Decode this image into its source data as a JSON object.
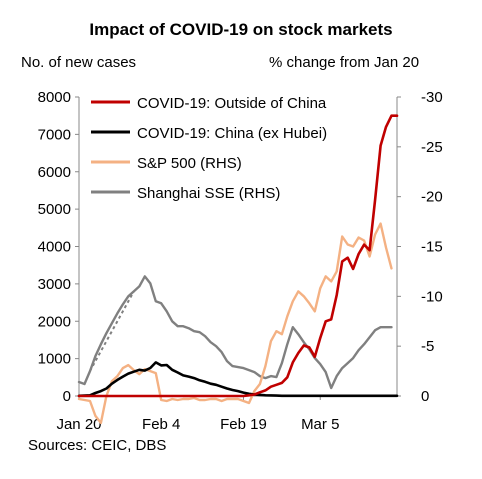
{
  "chart_data": {
    "type": "line",
    "title": "Impact of COVID-19 on stock markets",
    "ylabel_left": "No. of new cases",
    "ylabel_right": "% change from Jan 20",
    "source": "Sources: CEIC, DBS",
    "xlim": [
      0,
      58
    ],
    "ylim_left": [
      0,
      8000
    ],
    "ylim_right": [
      0,
      -30
    ],
    "right_axis_inverted": true,
    "x_ticks": [
      {
        "pos": 0,
        "label": "Jan 20"
      },
      {
        "pos": 15,
        "label": "Feb 4"
      },
      {
        "pos": 30,
        "label": "Feb 19"
      },
      {
        "pos": 44,
        "label": "Mar 5"
      }
    ],
    "y_ticks_left": [
      "0",
      "1000",
      "2000",
      "3000",
      "4000",
      "5000",
      "6000",
      "7000",
      "8000"
    ],
    "y_ticks_right": [
      "0",
      "-5",
      "-10",
      "-15",
      "-20",
      "-25",
      "-30"
    ],
    "legend_position": "top-right",
    "grid": false,
    "series": [
      {
        "name": "COVID-19: Outside of China",
        "axis": "left",
        "color": "#c00000",
        "x": [
          0,
          2,
          4,
          6,
          8,
          10,
          12,
          14,
          16,
          18,
          20,
          22,
          24,
          26,
          28,
          30,
          31,
          32,
          33,
          34,
          35,
          36,
          37,
          38,
          39,
          40,
          41,
          42,
          43,
          44,
          45,
          46,
          47,
          48,
          49,
          50,
          51,
          52,
          53,
          54,
          55,
          56,
          57,
          58
        ],
        "y": [
          0,
          0,
          0,
          0,
          0,
          0,
          0,
          0,
          0,
          0,
          0,
          0,
          0,
          0,
          0,
          0,
          20,
          40,
          100,
          150,
          250,
          300,
          350,
          500,
          900,
          1150,
          1350,
          1300,
          1050,
          1550,
          2000,
          2050,
          2700,
          3600,
          3700,
          3400,
          3800,
          4050,
          3900,
          5250,
          6700,
          7200,
          7500,
          7500
        ]
      },
      {
        "name": "COVID-19: China (ex Hubei)",
        "axis": "left",
        "color": "#000000",
        "x": [
          0,
          1,
          2,
          3,
          4,
          5,
          6,
          7,
          8,
          9,
          10,
          11,
          12,
          13,
          14,
          15,
          16,
          17,
          18,
          19,
          20,
          21,
          22,
          23,
          24,
          25,
          26,
          27,
          28,
          29,
          30,
          31,
          32,
          33,
          34,
          35,
          36,
          37,
          38,
          39,
          40,
          41,
          42,
          43,
          44,
          45,
          46,
          47,
          48,
          49,
          50,
          51,
          52,
          53,
          54,
          55,
          56,
          57,
          58
        ],
        "y": [
          5,
          10,
          20,
          80,
          130,
          200,
          330,
          430,
          520,
          600,
          650,
          700,
          680,
          750,
          900,
          820,
          830,
          700,
          630,
          550,
          520,
          480,
          420,
          380,
          330,
          300,
          250,
          200,
          160,
          130,
          90,
          60,
          40,
          30,
          20,
          15,
          10,
          5,
          5,
          5,
          5,
          5,
          5,
          5,
          5,
          5,
          5,
          5,
          5,
          5,
          5,
          5,
          5,
          5,
          5,
          5,
          5,
          5,
          5
        ]
      },
      {
        "name": "S&P 500 (RHS)",
        "axis": "right",
        "color": "#f4b183",
        "x": [
          0,
          2,
          3,
          4,
          5,
          6,
          7,
          8,
          9,
          10,
          11,
          12,
          13,
          14,
          15,
          16,
          17,
          18,
          19,
          20,
          21,
          22,
          23,
          24,
          25,
          26,
          27,
          28,
          29,
          30,
          31,
          32,
          33,
          34,
          35,
          36,
          37,
          38,
          39,
          40,
          41,
          42,
          43,
          44,
          45,
          46,
          47,
          48,
          49,
          50,
          51,
          52,
          53,
          54,
          55,
          56,
          57
        ],
        "y": [
          0.3,
          0.5,
          2,
          2.7,
          0,
          -1.5,
          -2,
          -2.8,
          -3.1,
          -2.6,
          -2.2,
          -2.7,
          -2.5,
          -2.3,
          0.4,
          0.5,
          0.3,
          0.4,
          0.3,
          0.3,
          0.2,
          0.4,
          0.4,
          0.3,
          0.3,
          0.5,
          0.3,
          0.3,
          0.3,
          0.5,
          0.7,
          -0.5,
          -1.2,
          -3,
          -5.5,
          -6.5,
          -6.2,
          -8,
          -9.5,
          -10.5,
          -10,
          -9.3,
          -8.5,
          -10.8,
          -12,
          -11.5,
          -12.5,
          -16,
          -15.2,
          -15,
          -15.9,
          -15.6,
          -14,
          -16.2,
          -17.3,
          -14.9,
          -12.8
        ]
      },
      {
        "name": "Shanghai SSE (RHS)",
        "axis": "right",
        "color": "#808080",
        "x": [
          0,
          1,
          2,
          3,
          4,
          5,
          6,
          7,
          8,
          9,
          10,
          11,
          12,
          13,
          14,
          15,
          16,
          17,
          18,
          19,
          20,
          21,
          22,
          23,
          24,
          25,
          26,
          27,
          28,
          29,
          30,
          31,
          32,
          33,
          34,
          35,
          36,
          37,
          38,
          39,
          40,
          41,
          42,
          43,
          44,
          45,
          46,
          47,
          48,
          49,
          50,
          51,
          52,
          53,
          54,
          55,
          56,
          57
        ],
        "y": [
          -1.4,
          -1.2,
          -2.5,
          -4,
          -5.2,
          -6.3,
          -7.3,
          -8.3,
          -9.2,
          -10,
          -10.5,
          -11,
          -12,
          -11.3,
          -9.5,
          -9.3,
          -8.5,
          -7.5,
          -7,
          -7,
          -6.8,
          -6.5,
          -6.4,
          -6,
          -5.4,
          -5,
          -4.4,
          -3.5,
          -3,
          -2.9,
          -2.8,
          -2.6,
          -2.4,
          -2,
          -1.8,
          -2,
          -1.9,
          -3.3,
          -5.2,
          -6.9,
          -6.2,
          -5.4,
          -4.7,
          -3.8,
          -3.2,
          -2.4,
          -0.8,
          -2,
          -2.8,
          -3.3,
          -3.8,
          -4.6,
          -5.2,
          -5.9,
          -6.6,
          -6.9,
          -6.9,
          -6.9
        ]
      }
    ]
  }
}
